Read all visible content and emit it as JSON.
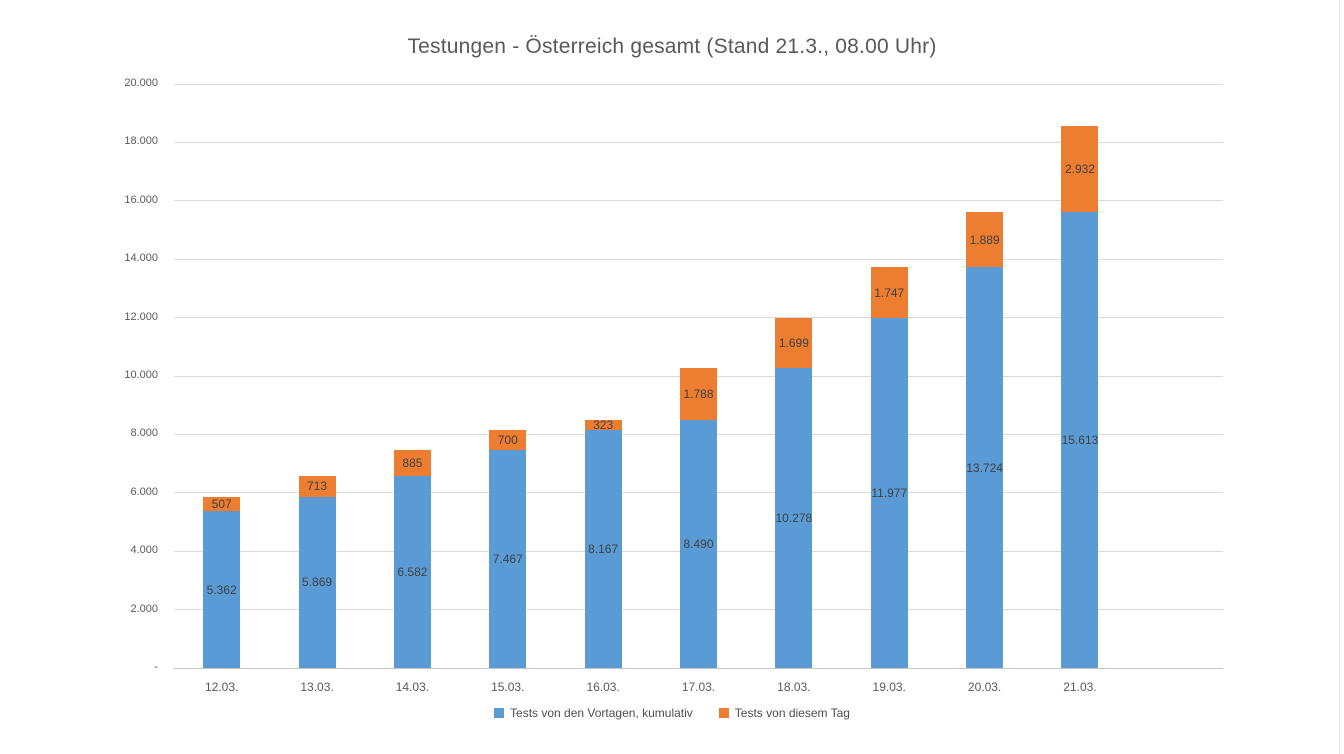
{
  "title": "Testungen - Österreich gesamt (Stand 21.3., 08.00 Uhr)",
  "colors": {
    "series_cumulative": "#5B9BD5",
    "series_today": "#ED7D31",
    "gridline": "#D9D9D9",
    "axis_line": "#C6C6C6",
    "axis_text": "#595959",
    "data_label_text": "#404040",
    "title_text": "#595959"
  },
  "chart_data": {
    "type": "bar",
    "stacked": true,
    "title": "Testungen - Österreich gesamt (Stand 21.3., 08.00 Uhr)",
    "categories": [
      "12.03.",
      "13.03.",
      "14.03.",
      "15.03.",
      "16.03.",
      "17.03.",
      "18.03.",
      "19.03.",
      "20.03.",
      "21.03."
    ],
    "series": [
      {
        "name": "Tests von den Vortagen, kumulativ",
        "color": "#5B9BD5",
        "values": [
          5362,
          5869,
          6582,
          7467,
          8167,
          8490,
          10278,
          11977,
          13724,
          15613
        ],
        "labels": [
          "5.362",
          "5.869",
          "6.582",
          "7.467",
          "8.167",
          "8.490",
          "10.278",
          "11.977",
          "13.724",
          "15.613"
        ]
      },
      {
        "name": "Tests von diesem Tag",
        "color": "#ED7D31",
        "values": [
          507,
          713,
          885,
          700,
          323,
          1788,
          1699,
          1747,
          1889,
          2932
        ],
        "labels": [
          "507",
          "713",
          "885",
          "700",
          "323",
          "1.788",
          "1.699",
          "1.747",
          "1.889",
          "2.932"
        ]
      }
    ],
    "xlabel": "",
    "ylabel": "",
    "ylim": [
      0,
      20000
    ],
    "ytick_step": 2000,
    "ytick_labels": [
      "-",
      "2.000",
      "4.000",
      "6.000",
      "8.000",
      "10.000",
      "12.000",
      "14.000",
      "16.000",
      "18.000",
      "20.000"
    ],
    "grid": true,
    "legend_position": "bottom"
  }
}
